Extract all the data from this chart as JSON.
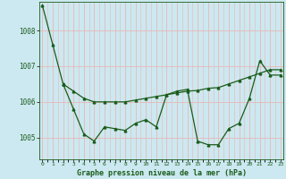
{
  "background_color": "#cce8f0",
  "plot_bg_color": "#cce8f0",
  "grid_color_major": "#f0c8c8",
  "grid_color_minor": "#e8d8d8",
  "line_color": "#1a5c1a",
  "title": "Graphe pression niveau de la mer (hPa)",
  "ylabel_ticks": [
    1005,
    1006,
    1007,
    1008
  ],
  "xlim": [
    -0.3,
    23.3
  ],
  "ylim": [
    1004.4,
    1008.8
  ],
  "series1_x": [
    0,
    1,
    2
  ],
  "series1_y": [
    1008.7,
    1007.6,
    1006.5
  ],
  "series2_x": [
    2,
    3,
    4,
    5,
    6,
    7,
    8,
    9,
    10,
    11,
    12,
    13,
    14,
    15,
    16,
    17,
    18,
    19,
    20,
    21,
    22,
    23
  ],
  "series2_y": [
    1006.5,
    1005.8,
    1005.1,
    1004.9,
    1005.3,
    1005.25,
    1005.2,
    1005.4,
    1005.5,
    1005.3,
    1006.2,
    1006.3,
    1006.35,
    1004.9,
    1004.8,
    1004.8,
    1005.25,
    1005.4,
    1006.1,
    1007.15,
    1006.75,
    1006.75
  ],
  "series3_x": [
    2,
    3,
    4,
    5,
    6,
    7,
    8,
    9,
    10,
    11,
    12,
    13,
    14,
    15,
    16,
    17,
    18,
    19,
    20,
    21,
    22,
    23
  ],
  "series3_y": [
    1006.5,
    1006.3,
    1006.1,
    1006.0,
    1006.0,
    1006.0,
    1006.0,
    1006.05,
    1006.1,
    1006.15,
    1006.2,
    1006.25,
    1006.3,
    1006.32,
    1006.38,
    1006.4,
    1006.5,
    1006.6,
    1006.7,
    1006.8,
    1006.9,
    1006.9
  ],
  "xtick_labels": [
    "0",
    "1",
    "2",
    "3",
    "4",
    "5",
    "6",
    "7",
    "8",
    "9",
    "10",
    "11",
    "12",
    "13",
    "14",
    "15",
    "16",
    "17",
    "18",
    "19",
    "20",
    "21",
    "22",
    "23"
  ]
}
